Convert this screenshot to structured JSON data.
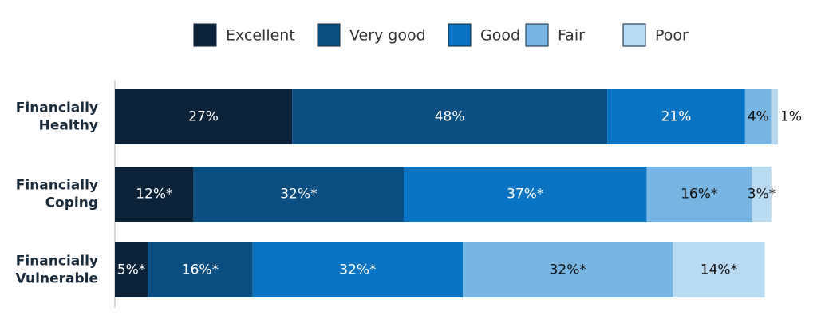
{
  "chart_data": {
    "type": "stacked-bar-horizontal",
    "categories": [
      [
        "Financially",
        "Healthy"
      ],
      [
        "Financially",
        "Coping"
      ],
      [
        "Financially",
        "Vulnerable"
      ]
    ],
    "series": [
      {
        "name": "Excellent",
        "color": "#0b2239",
        "values": [
          27,
          12,
          5
        ],
        "value_labels": [
          "27%",
          "12%*",
          "5%*"
        ]
      },
      {
        "name": "Very good",
        "color": "#0b4f82",
        "values": [
          48,
          32,
          16
        ],
        "value_labels": [
          "48%",
          "32%*",
          "16%*"
        ]
      },
      {
        "name": "Good",
        "color": "#0a74c4",
        "values": [
          21,
          37,
          32
        ],
        "value_labels": [
          "21%",
          "37%*",
          "32%*"
        ]
      },
      {
        "name": "Fair",
        "color": "#79b5e3",
        "values": [
          4,
          16,
          32
        ],
        "value_labels": [
          "4%",
          "16%*",
          "32%*"
        ]
      },
      {
        "name": "Poor",
        "color": "#b9daf3",
        "values": [
          1,
          3,
          14
        ],
        "value_labels": [
          "1%",
          "3%*",
          "14%*"
        ]
      }
    ]
  }
}
